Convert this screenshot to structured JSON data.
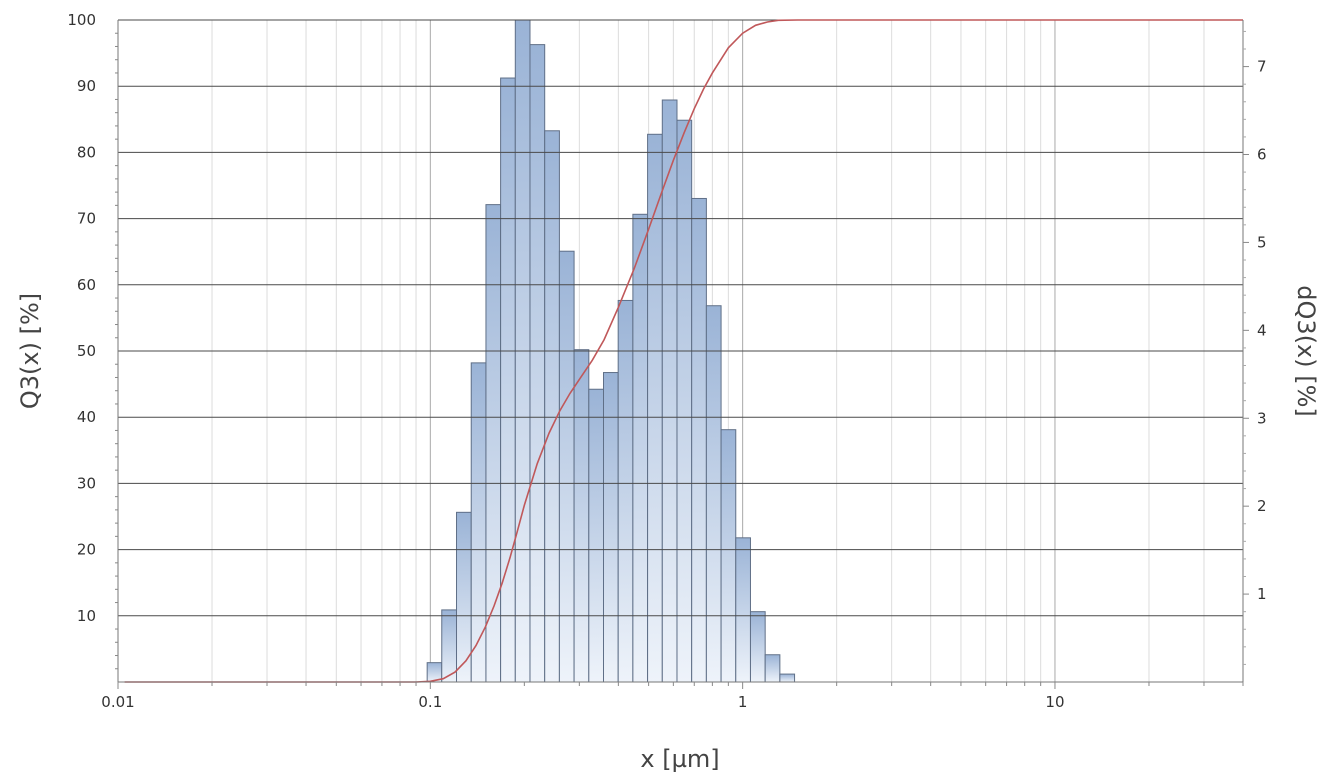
{
  "chart_data": {
    "type": "bar",
    "xlabel": "x [µm]",
    "ylabel_left": "Q3(x) [%]",
    "ylabel_right": "dQ3(x) [%]",
    "x_scale": "log",
    "xlim": [
      0.01,
      40
    ],
    "ylim_left": [
      0,
      100
    ],
    "ylim_right": [
      0,
      7.53
    ],
    "grid": true,
    "x_ticks": [
      0.01,
      0.1,
      1,
      10
    ],
    "x_tick_labels": [
      "0.01",
      "0.1",
      "1",
      "10"
    ],
    "y_left_ticks": [
      10,
      20,
      30,
      40,
      50,
      60,
      70,
      80,
      90,
      100
    ],
    "y_left_tick_labels": [
      "10",
      "20",
      "30",
      "40",
      "50",
      "60",
      "70",
      "80",
      "90",
      "100"
    ],
    "y_right_ticks": [
      1,
      2,
      3,
      4,
      5,
      6,
      7
    ],
    "y_right_tick_labels": [
      "1",
      "2",
      "3",
      "4",
      "5",
      "6",
      "7"
    ],
    "series": [
      {
        "kind": "histogram",
        "axis": "right",
        "bin_edges": [
          0.0977,
          0.1088,
          0.1213,
          0.1352,
          0.1507,
          0.1679,
          0.1871,
          0.2085,
          0.2324,
          0.259,
          0.2886,
          0.3217,
          0.3585,
          0.3995,
          0.4452,
          0.4962,
          0.553,
          0.6163,
          0.6868,
          0.7654,
          0.853,
          0.9506,
          1.0594,
          1.1807,
          1.3158,
          1.4664,
          1.6342
        ],
        "values": [
          0.22,
          0.82,
          1.93,
          3.63,
          5.43,
          6.87,
          7.53,
          7.25,
          6.27,
          4.9,
          3.78,
          3.33,
          3.52,
          4.34,
          5.32,
          6.23,
          6.62,
          6.39,
          5.5,
          4.28,
          2.87,
          1.64,
          0.8,
          0.31,
          0.09,
          0.0
        ],
        "fill_top": "#9ab3d6",
        "fill_bottom": "#eef3fa",
        "stroke": "#5f6f87"
      },
      {
        "kind": "line",
        "axis": "left",
        "x": [
          0.0105,
          0.05,
          0.09,
          0.1,
          0.11,
          0.12,
          0.13,
          0.14,
          0.15,
          0.16,
          0.17,
          0.18,
          0.19,
          0.2,
          0.22,
          0.24,
          0.26,
          0.28,
          0.3,
          0.33,
          0.36,
          0.4,
          0.45,
          0.5,
          0.55,
          0.6,
          0.65,
          0.7,
          0.75,
          0.8,
          0.9,
          1.0,
          1.1,
          1.2,
          1.3,
          1.5,
          2.0,
          40
        ],
        "values": [
          0,
          0,
          0,
          0.1,
          0.5,
          1.5,
          3.2,
          5.5,
          8.3,
          11.5,
          15.0,
          18.8,
          22.8,
          26.7,
          33.0,
          37.6,
          41.0,
          43.6,
          45.7,
          48.6,
          51.7,
          56.6,
          62.5,
          68.4,
          73.9,
          78.8,
          83.0,
          86.6,
          89.6,
          92.0,
          95.8,
          98.0,
          99.2,
          99.7,
          99.95,
          100,
          100,
          100
        ],
        "color": "#c0585a"
      }
    ]
  }
}
